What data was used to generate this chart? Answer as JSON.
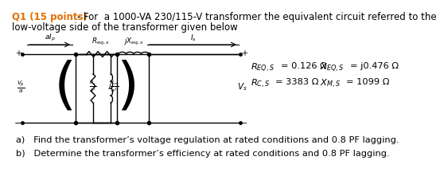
{
  "title_part1": "Q1 (15 points)",
  "title_color1": "#e07000",
  "title_part2": " - For  a 1000-VA 230/115-V transformer the equivalent circuit referred to the",
  "title_line2": "low-voltage side of the transformer given below",
  "eq1_lbl": "$R_{EQ,S}$",
  "eq1_val": " = 0.126 Ω",
  "eq2_lbl": "$R_{C,S}$",
  "eq2_val": " = 3383 Ω",
  "eq3_lbl": "$X_{EQ,S}$",
  "eq3_val": " = j0.476 Ω",
  "eq4_lbl": "$X_{M,S}$",
  "eq4_val": " = 1099 Ω",
  "qa": "a)   Find the transformer’s voltage regulation at rated conditions and 0.8 PF lagging.",
  "qb": "b)   Determine the transformer’s efficiency at rated conditions and 0.8 PF lagging.",
  "bg_color": "#ffffff",
  "text_color": "#000000",
  "fs_title": 8.5,
  "fs_body": 8.2,
  "fs_eq": 8.2,
  "fs_circuit": 6.5
}
